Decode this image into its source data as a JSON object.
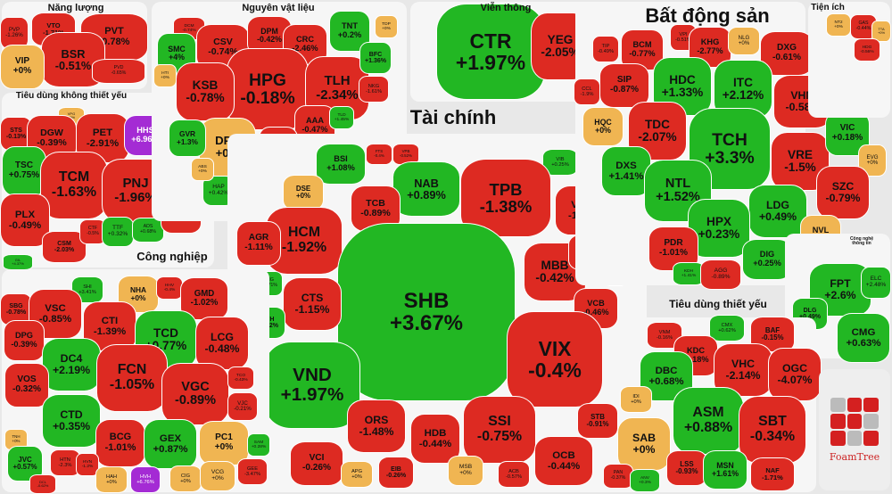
{
  "colors": {
    "up": "#22b723",
    "down": "#dd2a22",
    "flat": "#f0b552",
    "ceiling": "#a42bd4"
  },
  "logo_text": "FoamTree",
  "groups": [
    {
      "title": "Năng lượng",
      "stocks": [
        {
          "t": "PVP",
          "c": "-1.26%"
        },
        {
          "t": "VTO",
          "c": "-1.71%"
        },
        {
          "t": "PVT",
          "c": "-0.78%"
        },
        {
          "t": "BSR",
          "c": "-0.51%"
        },
        {
          "t": "VIP",
          "c": "+0%"
        },
        {
          "t": "PVD",
          "c": "-0.65%"
        }
      ]
    },
    {
      "title": "Tiêu dùng không thiết yếu",
      "stocks": [
        {
          "t": "STS",
          "c": "-0.13%"
        },
        {
          "t": "VPG",
          "c": "+0%"
        },
        {
          "t": "DGW",
          "c": "-0.39%"
        },
        {
          "t": "PET",
          "c": "-2.91%"
        },
        {
          "t": "HHS",
          "c": "+6.96%"
        },
        {
          "t": "TSC",
          "c": "+0.75%"
        },
        {
          "t": "TCM",
          "c": "-1.63%"
        },
        {
          "t": "PNJ",
          "c": "-1.96%"
        },
        {
          "t": "PLX",
          "c": "-0.49%"
        },
        {
          "t": "CSM",
          "c": "-2.03%"
        },
        {
          "t": "CTF",
          "c": "-0.5%"
        },
        {
          "t": "TTF",
          "c": "+0.32%"
        },
        {
          "t": "ADS",
          "c": "+0.68%"
        },
        {
          "t": "MWG",
          "c": "-0.66%"
        },
        {
          "t": "GIL",
          "c": "+4.37%"
        }
      ]
    },
    {
      "title": "Nguyên vật liệu",
      "stocks": [
        {
          "t": "DCM",
          "c": "-0.74%"
        },
        {
          "t": "SMC",
          "c": "+4%"
        },
        {
          "t": "CSV",
          "c": "-0.74%"
        },
        {
          "t": "DPM",
          "c": "-0.42%"
        },
        {
          "t": "CRC",
          "c": "-2.46%"
        },
        {
          "t": "HPG",
          "c": "-0.18%"
        },
        {
          "t": "KSB",
          "c": "-0.78%"
        },
        {
          "t": "TLH",
          "c": "-2.34%"
        },
        {
          "t": "TNT",
          "c": "+0.2%"
        },
        {
          "t": "TDP",
          "c": "+0%"
        },
        {
          "t": "BFC",
          "c": "+1.36%"
        },
        {
          "t": "NKG",
          "c": "-1.61%"
        },
        {
          "t": "AAA",
          "c": "-0.47%"
        },
        {
          "t": "HSG",
          "c": "-1.39%"
        },
        {
          "t": "DPR",
          "c": "+0%"
        },
        {
          "t": "GVR",
          "c": "+1.3%"
        },
        {
          "t": "HTI",
          "c": "+0%"
        },
        {
          "t": "HAP",
          "c": "+0.42%"
        },
        {
          "t": "DGC",
          "c": "+0.57%"
        },
        {
          "t": "ABS",
          "c": "+0%"
        },
        {
          "t": "PHR",
          "c": "-0.15%"
        },
        {
          "t": "BKG",
          "c": "+0%"
        },
        {
          "t": "TLD",
          "c": "+1.45%"
        }
      ]
    },
    {
      "title": "Viễn thông",
      "stocks": [
        {
          "t": "CTR",
          "c": "+1.97%"
        },
        {
          "t": "YEG",
          "c": "-2.05%"
        }
      ]
    },
    {
      "title": "Tài chính",
      "stocks": [
        {
          "t": "BSI",
          "c": "+1.08%"
        },
        {
          "t": "FTS",
          "c": "-0.4%"
        },
        {
          "t": "VPB",
          "c": "-0.52%"
        },
        {
          "t": "VIB",
          "c": "+0.25%"
        },
        {
          "t": "NAB",
          "c": "+0.89%"
        },
        {
          "t": "TPB",
          "c": "-1.38%"
        },
        {
          "t": "VDS",
          "c": "-1.3%"
        },
        {
          "t": "TCB",
          "c": "-0.89%"
        },
        {
          "t": "DSE",
          "c": "+0%"
        },
        {
          "t": "HCM",
          "c": "-1.92%"
        },
        {
          "t": "AGR",
          "c": "-1.11%"
        },
        {
          "t": "MBB",
          "c": "-0.42%"
        },
        {
          "t": "EVF",
          "c": "-0.5%"
        },
        {
          "t": "CTG",
          "c": "-0.36%"
        },
        {
          "t": "SHB",
          "c": "+3.67%"
        },
        {
          "t": "CTS",
          "c": "-1.15%"
        },
        {
          "t": "VCB",
          "c": "-0.46%"
        },
        {
          "t": "MIG",
          "c": "+1.71%"
        },
        {
          "t": "BVH",
          "c": "+1.92%"
        },
        {
          "t": "VIX",
          "c": "-0.4%"
        },
        {
          "t": "VND",
          "c": "+1.97%"
        },
        {
          "t": "STB",
          "c": "-0.91%"
        },
        {
          "t": "SSI",
          "c": "-0.75%"
        },
        {
          "t": "ORS",
          "c": "-1.48%"
        },
        {
          "t": "HDB",
          "c": "-0.44%"
        },
        {
          "t": "OCB",
          "c": "-0.44%"
        },
        {
          "t": "VCI",
          "c": "-0.26%"
        },
        {
          "t": "APG",
          "c": "+0%"
        },
        {
          "t": "EIB",
          "c": "-0.26%"
        },
        {
          "t": "MSB",
          "c": "+0%"
        },
        {
          "t": "ACB",
          "c": "-0.57%"
        }
      ]
    },
    {
      "title": "Bất động sản",
      "stocks": [
        {
          "t": "TIP",
          "c": "-0.49%"
        },
        {
          "t": "BCM",
          "c": "-0.77%"
        },
        {
          "t": "VPI",
          "c": "-0.51%"
        },
        {
          "t": "KHG",
          "c": "-2.77%"
        },
        {
          "t": "NLG",
          "c": "+0%"
        },
        {
          "t": "DXG",
          "c": "-0.61%"
        },
        {
          "t": "CII",
          "c": "-0.36%"
        },
        {
          "t": "CCL",
          "c": "-1.9%"
        },
        {
          "t": "SIP",
          "c": "-0.87%"
        },
        {
          "t": "HDC",
          "c": "+1.33%"
        },
        {
          "t": "ITC",
          "c": "+2.12%"
        },
        {
          "t": "VHM",
          "c": "-0.58%"
        },
        {
          "t": "SCR",
          "c": "+0%"
        },
        {
          "t": "HQC",
          "c": "+0%"
        },
        {
          "t": "TDC",
          "c": "-2.07%"
        },
        {
          "t": "TCH",
          "c": "+3.3%"
        },
        {
          "t": "VRE",
          "c": "-1.5%"
        },
        {
          "t": "VIC",
          "c": "+0.18%"
        },
        {
          "t": "EVG",
          "c": "+0%"
        },
        {
          "t": "DXS",
          "c": "+1.41%"
        },
        {
          "t": "NTL",
          "c": "+1.52%"
        },
        {
          "t": "LDG",
          "c": "+0.49%"
        },
        {
          "t": "SZC",
          "c": "-0.79%"
        },
        {
          "t": "HPX",
          "c": "+0.23%"
        },
        {
          "t": "PDR",
          "c": "-1.01%"
        },
        {
          "t": "NVL",
          "c": "+0%"
        },
        {
          "t": "KDH",
          "c": "+1.41%"
        },
        {
          "t": "AGG",
          "c": "-0.89%"
        },
        {
          "t": "DIG",
          "c": "+0.25%"
        },
        {
          "t": "KBC",
          "c": "+0.34%"
        }
      ]
    },
    {
      "title": "Tiện ích",
      "stocks": [
        {
          "t": "NT2",
          "c": "+0%"
        },
        {
          "t": "GAS",
          "c": "-0.44%"
        },
        {
          "t": "TTA",
          "c": "+0%"
        },
        {
          "t": "HDG",
          "c": "-0.56%"
        }
      ]
    },
    {
      "title": "Công nghệ thông tin",
      "stocks": [
        {
          "t": "FPT",
          "c": "+2.6%"
        },
        {
          "t": "ELC",
          "c": "+2.48%"
        },
        {
          "t": "DLG",
          "c": "+0.49%"
        },
        {
          "t": "CMG",
          "c": "+0.63%"
        }
      ]
    },
    {
      "title": "Công nghiệp",
      "stocks": [
        {
          "t": "SBG",
          "c": "-0.78%"
        },
        {
          "t": "SHI",
          "c": "+3.41%"
        },
        {
          "t": "NHA",
          "c": "+0%"
        },
        {
          "t": "HHV",
          "c": "-0.4%"
        },
        {
          "t": "GMD",
          "c": "-1.02%"
        },
        {
          "t": "VSC",
          "c": "-0.85%"
        },
        {
          "t": "DPG",
          "c": "-0.39%"
        },
        {
          "t": "CTI",
          "c": "-1.39%"
        },
        {
          "t": "TCD",
          "c": "+0.77%"
        },
        {
          "t": "LCG",
          "c": "-0.48%"
        },
        {
          "t": "DC4",
          "c": "+2.19%"
        },
        {
          "t": "FCN",
          "c": "-1.05%"
        },
        {
          "t": "VGC",
          "c": "-0.89%"
        },
        {
          "t": "VOS",
          "c": "-0.32%"
        },
        {
          "t": "TCO",
          "c": "-0.43%"
        },
        {
          "t": "VJC",
          "c": "-0.21%"
        },
        {
          "t": "CTD",
          "c": "+0.35%"
        },
        {
          "t": "BCG",
          "c": "-1.01%"
        },
        {
          "t": "GEX",
          "c": "+0.87%"
        },
        {
          "t": "PC1",
          "c": "+0%"
        },
        {
          "t": "SAM",
          "c": "+0.28%"
        },
        {
          "t": "TNH",
          "c": "+0%"
        },
        {
          "t": "JVC",
          "c": "+0.57%"
        },
        {
          "t": "HTN",
          "c": "-2.3%"
        },
        {
          "t": "HVN",
          "c": "-1.2%"
        },
        {
          "t": "DCL",
          "c": "-0.62%"
        },
        {
          "t": "HAH",
          "c": "+0%"
        },
        {
          "t": "HVH",
          "c": "+6.76%"
        },
        {
          "t": "CIG",
          "c": "+0%"
        },
        {
          "t": "VCG",
          "c": "+0%"
        },
        {
          "t": "GEE",
          "c": "-3.47%"
        }
      ]
    },
    {
      "title": "Tiêu dùng thiết yếu",
      "stocks": [
        {
          "t": "VNM",
          "c": "-0.16%"
        },
        {
          "t": "CMX",
          "c": "+0.62%"
        },
        {
          "t": "BAF",
          "c": "-0.15%"
        },
        {
          "t": "KDC",
          "c": "-0.18%"
        },
        {
          "t": "VHC",
          "c": "-2.14%"
        },
        {
          "t": "OGC",
          "c": "-4.07%"
        },
        {
          "t": "DBC",
          "c": "+0.68%"
        },
        {
          "t": "IDI",
          "c": "+0%"
        },
        {
          "t": "ASM",
          "c": "+0.88%"
        },
        {
          "t": "SBT",
          "c": "-0.34%"
        },
        {
          "t": "SAB",
          "c": "+0%"
        },
        {
          "t": "LSS",
          "c": "-0.93%"
        },
        {
          "t": "MSN",
          "c": "+1.61%"
        },
        {
          "t": "NAF",
          "c": "-1.71%"
        },
        {
          "t": "PAN",
          "c": "-0.37%"
        },
        {
          "t": "ANV",
          "c": "+0.3%"
        }
      ]
    }
  ]
}
